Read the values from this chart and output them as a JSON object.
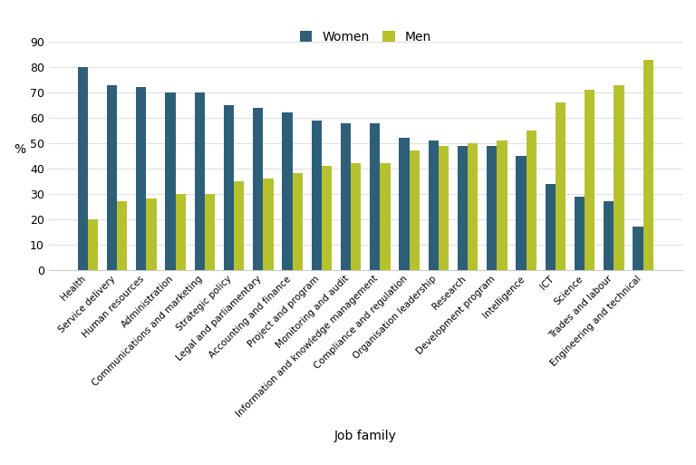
{
  "categories": [
    "Health",
    "Service delivery",
    "Human resources",
    "Administration",
    "Communications and marketing",
    "Strategic policy",
    "Legal and parliamentary",
    "Accounting and finance",
    "Project and program",
    "Monitoring and audit",
    "Information and knowledge management",
    "Compliance and regulation",
    "Organisation leadership",
    "Research",
    "Development program",
    "Intelligence",
    "ICT",
    "Science",
    "Trades and labour",
    "Engineering and technical"
  ],
  "women": [
    80,
    73,
    72,
    70,
    70,
    65,
    64,
    62,
    59,
    58,
    58,
    52,
    51,
    49,
    49,
    45,
    34,
    29,
    27,
    17
  ],
  "men": [
    20,
    27,
    28,
    30,
    30,
    35,
    36,
    38,
    41,
    42,
    42,
    47,
    49,
    50,
    51,
    55,
    66,
    71,
    73,
    83
  ],
  "women_color": "#2e5f78",
  "men_color": "#b5c22e",
  "xlabel": "Job family",
  "ylabel": "%",
  "ylim": [
    0,
    90
  ],
  "yticks": [
    0,
    10,
    20,
    30,
    40,
    50,
    60,
    70,
    80,
    90
  ],
  "legend_labels": [
    "Women",
    "Men"
  ],
  "background_color": "#ffffff",
  "grid_color": "#e0e0e0",
  "bar_width": 0.35
}
